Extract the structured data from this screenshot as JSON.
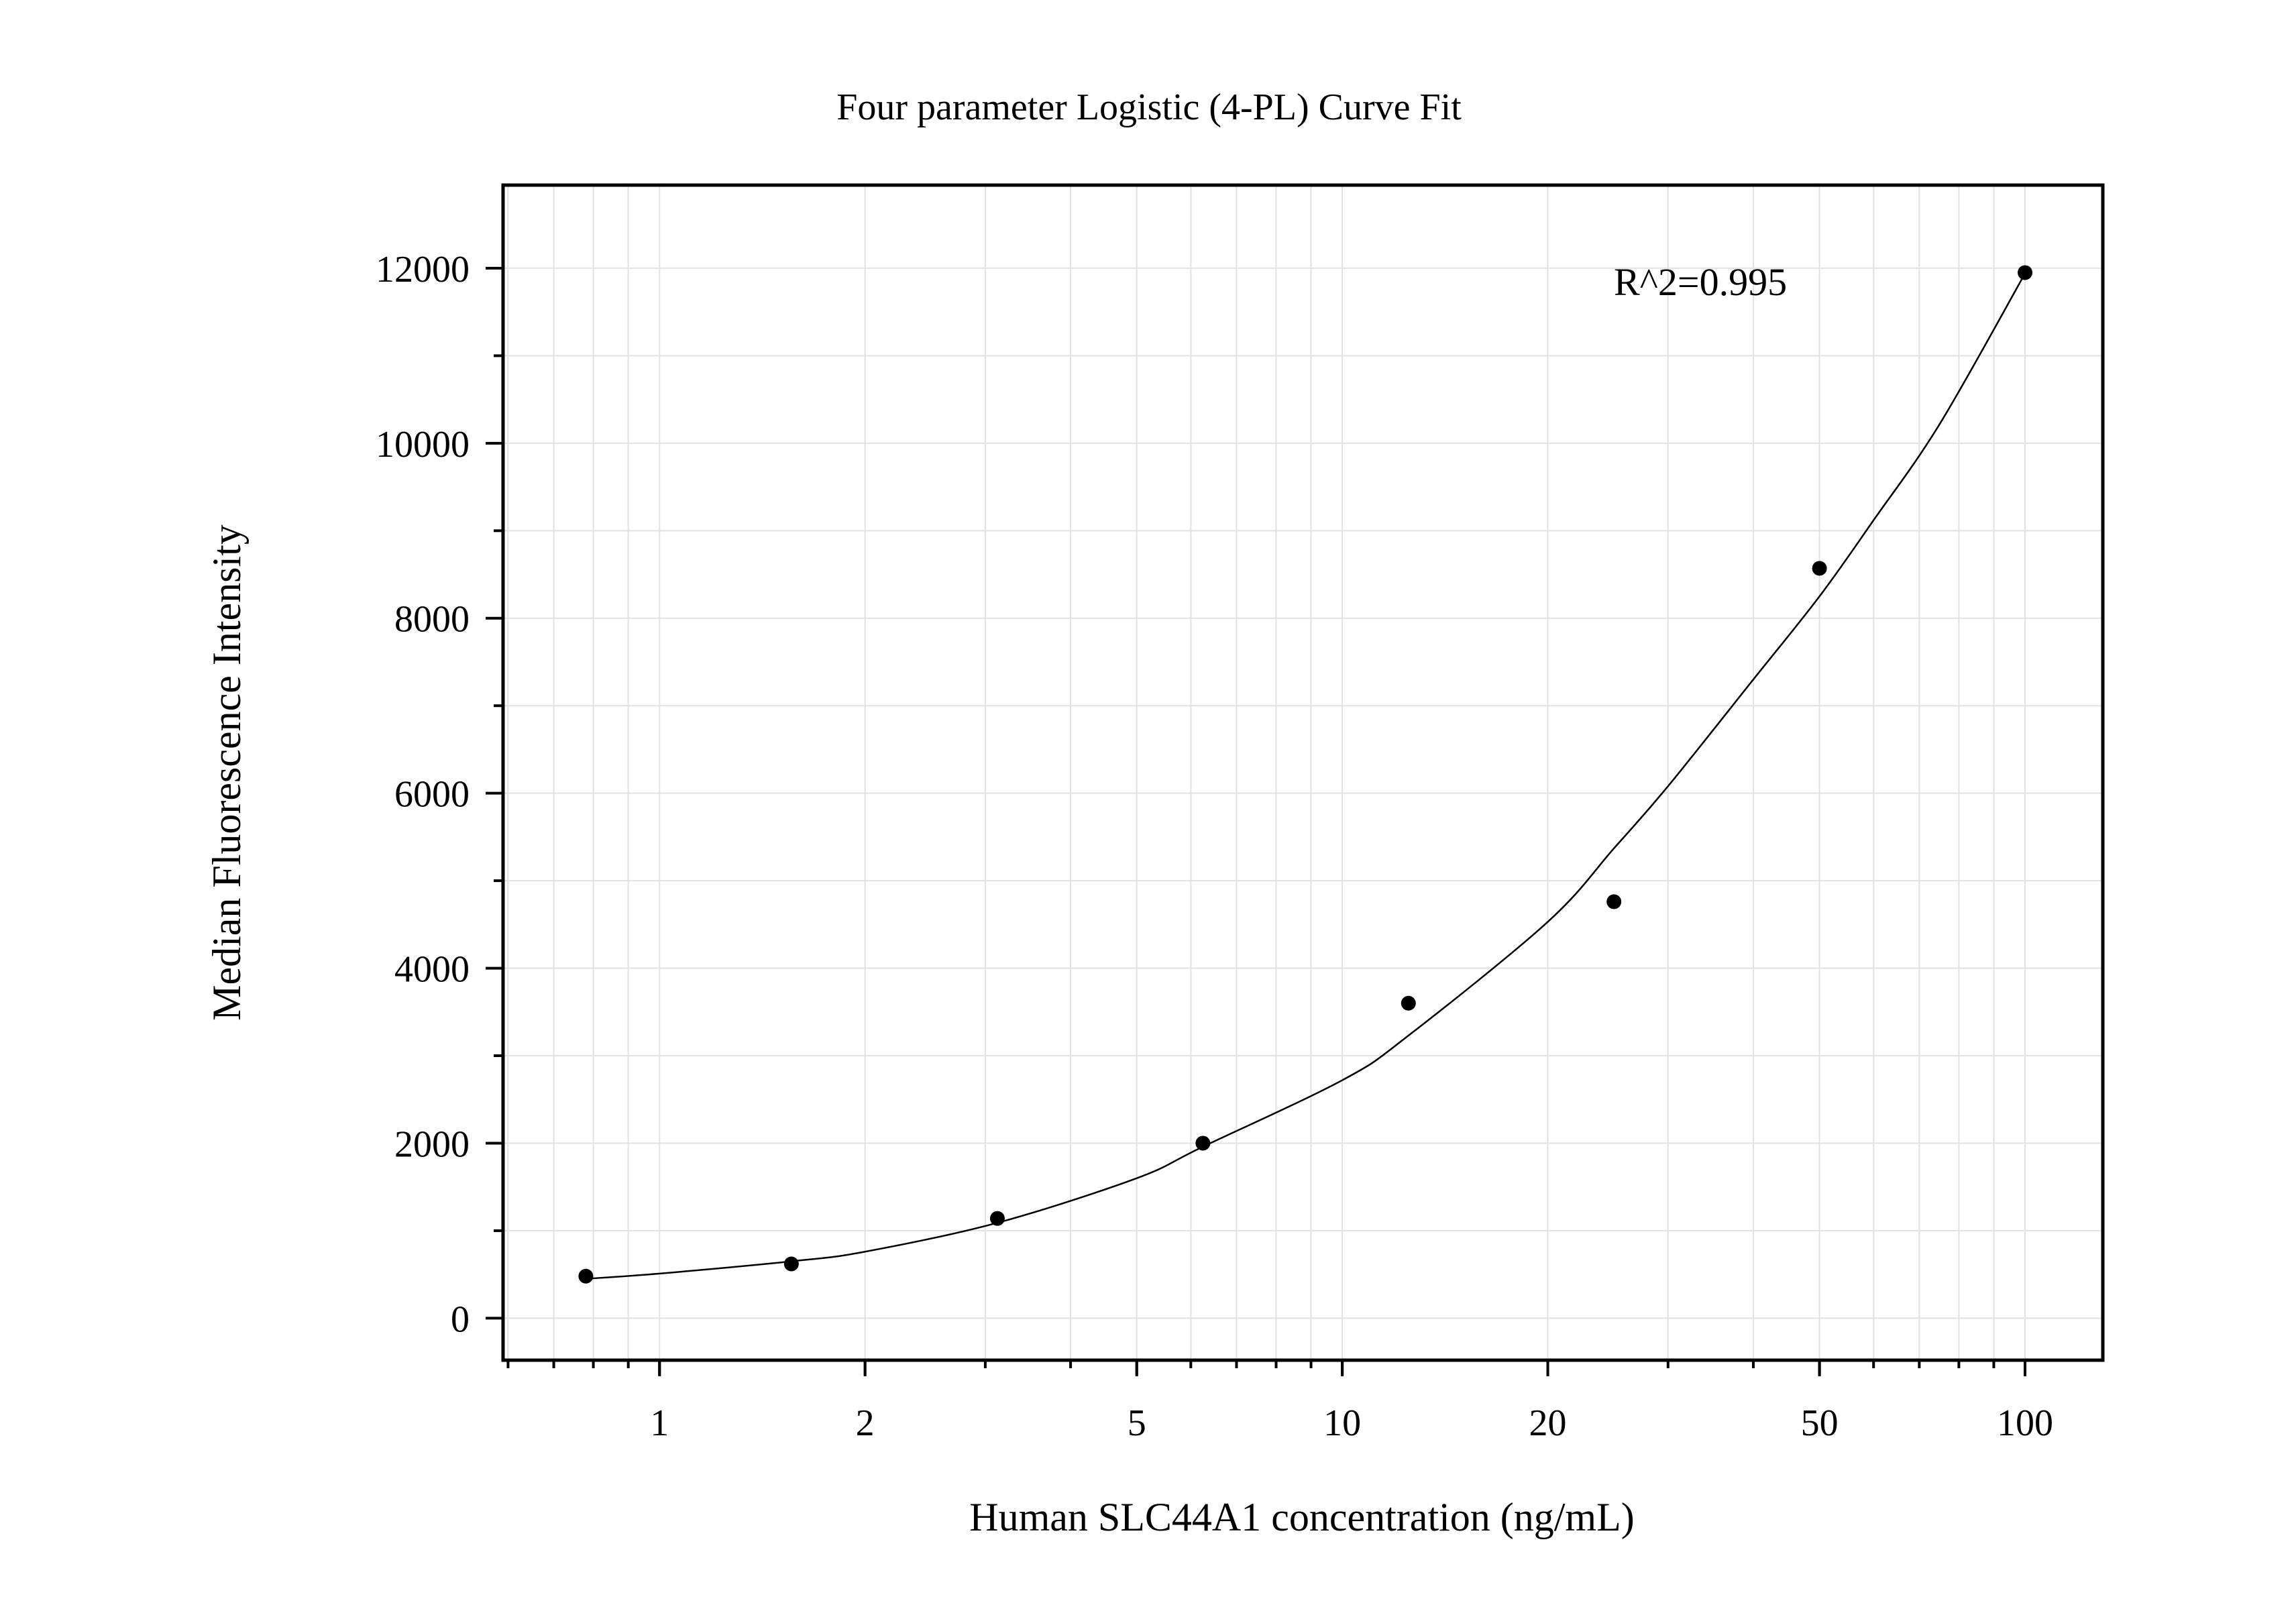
{
  "chart_data": {
    "type": "scatter",
    "title": "Four parameter Logistic (4-PL) Curve Fit",
    "xlabel": "Human SLC44A1 concentration (ng/mL)",
    "ylabel": "Median Fluorescence Intensity",
    "annotation": "R^2=0.995",
    "x_scale": "log",
    "xlim": [
      0.59,
      130
    ],
    "ylim": [
      -480,
      12950
    ],
    "x_ticks": [
      1,
      2,
      5,
      10,
      20,
      50,
      100
    ],
    "x_tick_labels": [
      "1",
      "2",
      "5",
      "10",
      "20",
      "50",
      "100"
    ],
    "y_ticks": [
      0,
      2000,
      4000,
      6000,
      8000,
      10000,
      12000
    ],
    "y_tick_labels": [
      "0",
      "2000",
      "4000",
      "6000",
      "8000",
      "10000",
      "12000"
    ],
    "grid": true,
    "series": [
      {
        "type": "scatter",
        "x": [
          0.78,
          1.56,
          3.125,
          6.25,
          12.5,
          25,
          50,
          100
        ],
        "y": [
          480,
          620,
          1140,
          2000,
          3600,
          4760,
          8570,
          11950
        ]
      },
      {
        "type": "line",
        "x": [
          0.78,
          1,
          1.56,
          2,
          3.125,
          5,
          6.25,
          10,
          12.5,
          20,
          25,
          30,
          40,
          50,
          60,
          75,
          100
        ],
        "y": [
          450,
          510,
          650,
          760,
          1090,
          1600,
          1960,
          2720,
          3230,
          4530,
          5370,
          6080,
          7300,
          8250,
          9120,
          10220,
          11940
        ]
      }
    ],
    "colors": {
      "axis": "#000000",
      "grid": "#e2e2e2",
      "point": "#000000",
      "line": "#000000"
    }
  }
}
